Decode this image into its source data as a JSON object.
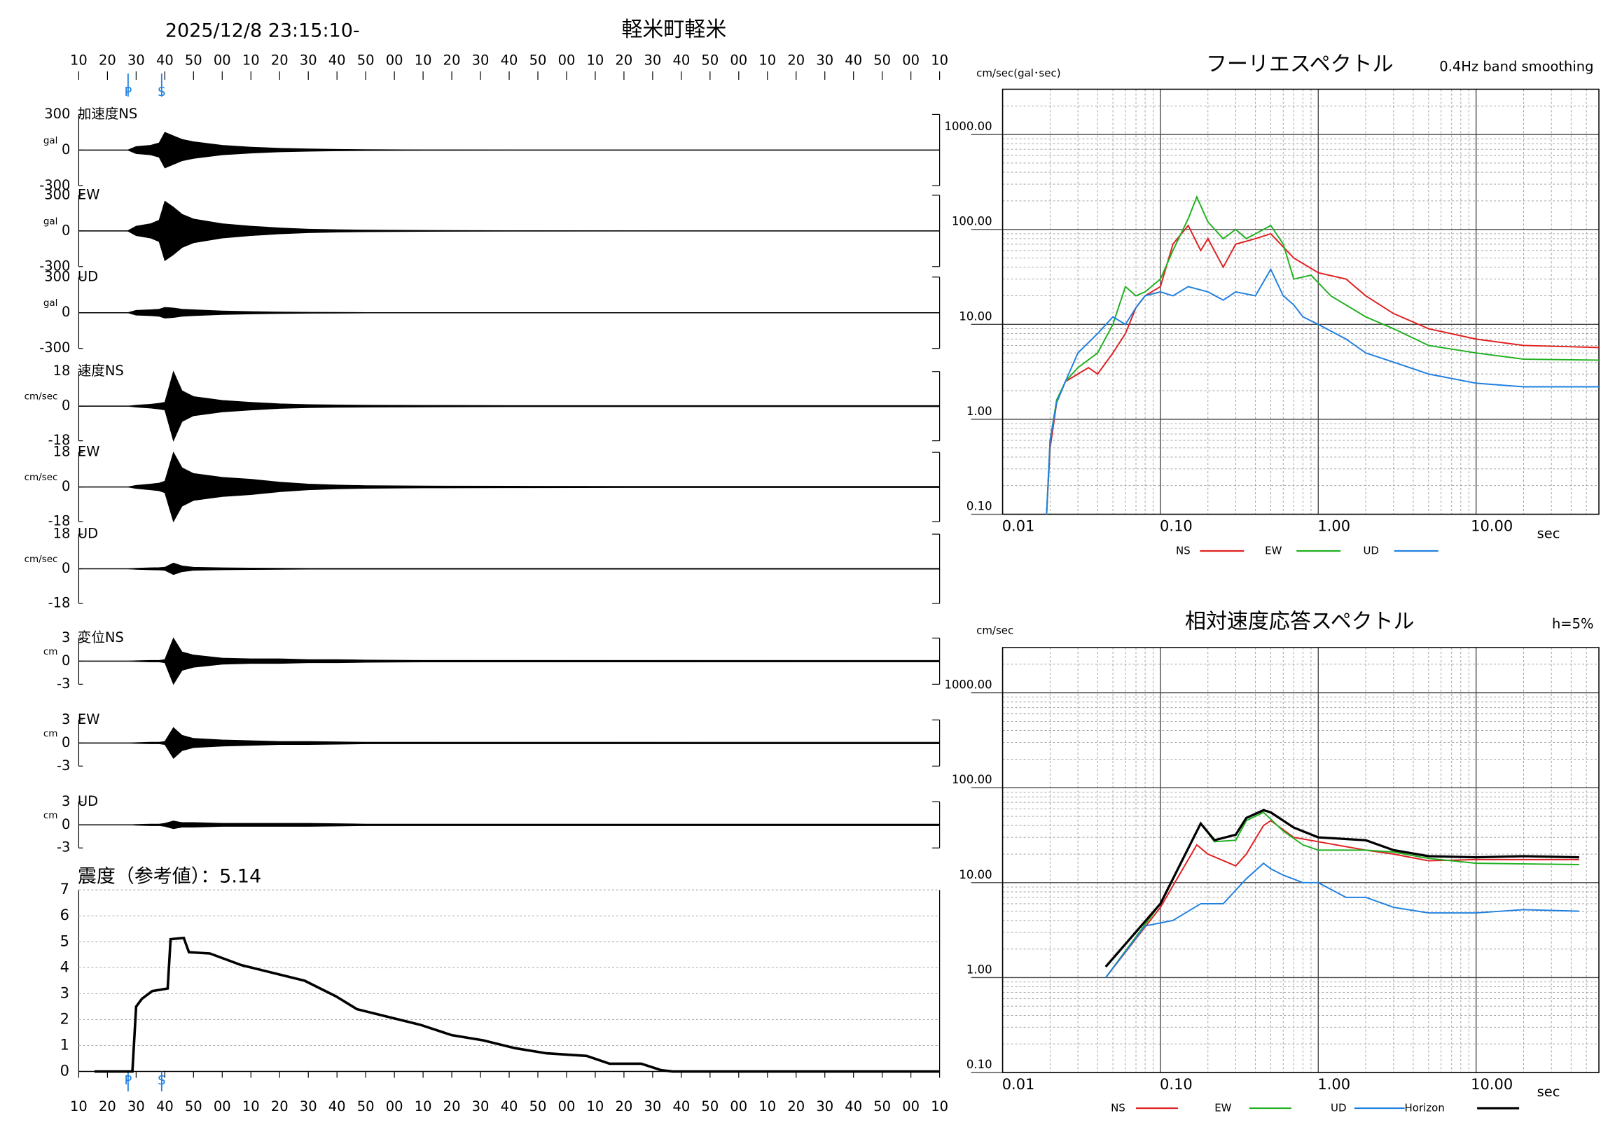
{
  "header": {
    "datetime": "2025/12/8 23:15:10-",
    "station": "軽米町軽米"
  },
  "chart_data": [
    {
      "type": "waveform",
      "xlim": [
        0,
        300
      ],
      "xticks": [
        {
          "value": 0,
          "label": "10"
        },
        {
          "value": 10,
          "label": "20"
        },
        {
          "value": 20,
          "label": "30"
        },
        {
          "value": 30,
          "label": "40"
        },
        {
          "value": 40,
          "label": "50"
        },
        {
          "value": 50,
          "label": "00"
        },
        {
          "value": 60,
          "label": "10"
        },
        {
          "value": 70,
          "label": "20"
        },
        {
          "value": 80,
          "label": "30"
        },
        {
          "value": 90,
          "label": "40"
        },
        {
          "value": 100,
          "label": "50"
        },
        {
          "value": 110,
          "label": "00"
        },
        {
          "value": 120,
          "label": "10"
        },
        {
          "value": 130,
          "label": "20"
        },
        {
          "value": 140,
          "label": "30"
        },
        {
          "value": 150,
          "label": "40"
        },
        {
          "value": 160,
          "label": "50"
        },
        {
          "value": 170,
          "label": "00"
        },
        {
          "value": 180,
          "label": "10"
        },
        {
          "value": 190,
          "label": "20"
        },
        {
          "value": 200,
          "label": "30"
        },
        {
          "value": 210,
          "label": "40"
        },
        {
          "value": 220,
          "label": "50"
        },
        {
          "value": 230,
          "label": "00"
        },
        {
          "value": 240,
          "label": "10"
        },
        {
          "value": 250,
          "label": "20"
        },
        {
          "value": 260,
          "label": "30"
        },
        {
          "value": 270,
          "label": "40"
        },
        {
          "value": 280,
          "label": "50"
        },
        {
          "value": 290,
          "label": "00"
        },
        {
          "value": 300,
          "label": "10"
        }
      ],
      "phases": [
        {
          "label": "P",
          "value": 17.2
        },
        {
          "label": "S",
          "value": 28.9
        }
      ],
      "x": [
        0,
        17,
        20,
        25,
        28,
        30,
        33,
        36,
        40,
        50,
        60,
        70,
        80,
        90,
        100,
        120,
        150,
        200,
        250,
        300
      ],
      "panels": [
        {
          "label": "加速度NS",
          "unit": "gal",
          "ylim": [
            -300,
            300
          ],
          "yticks": [
            300,
            0,
            -300
          ],
          "values": [
            0,
            0,
            30,
            40,
            60,
            150,
            120,
            90,
            70,
            40,
            25,
            15,
            10,
            6,
            4,
            2,
            1,
            1,
            1,
            1
          ]
        },
        {
          "label": "EW",
          "unit": "gal",
          "ylim": [
            -300,
            300
          ],
          "yticks": [
            300,
            0,
            -300
          ],
          "values": [
            0,
            0,
            40,
            60,
            90,
            250,
            200,
            140,
            100,
            60,
            40,
            25,
            15,
            10,
            7,
            4,
            2,
            1,
            1,
            1
          ]
        },
        {
          "label": "UD",
          "unit": "gal",
          "ylim": [
            -300,
            300
          ],
          "yticks": [
            300,
            0,
            -300
          ],
          "values": [
            0,
            0,
            20,
            25,
            30,
            45,
            40,
            30,
            25,
            15,
            10,
            6,
            4,
            3,
            2,
            1,
            1,
            1,
            1,
            1
          ]
        },
        {
          "label": "速度NS",
          "unit": "cm/sec",
          "ylim": [
            -18,
            18
          ],
          "yticks": [
            18,
            0,
            -18
          ],
          "values": [
            0,
            0,
            0.5,
            1,
            1.5,
            2,
            18,
            8,
            5,
            3,
            2,
            1.2,
            0.8,
            0.6,
            0.5,
            0.4,
            0.3,
            0.3,
            0.3,
            0.3
          ]
        },
        {
          "label": "EW",
          "unit": "cm/sec",
          "ylim": [
            -18,
            18
          ],
          "yticks": [
            18,
            0,
            -18
          ],
          "values": [
            0,
            0,
            0.8,
            1.5,
            2,
            3,
            18,
            10,
            7,
            5,
            4,
            2.5,
            1.5,
            1,
            0.7,
            0.5,
            0.4,
            0.3,
            0.3,
            0.3
          ]
        },
        {
          "label": "UD",
          "unit": "cm/sec",
          "ylim": [
            -18,
            18
          ],
          "yticks": [
            18,
            0,
            -18
          ],
          "values": [
            0,
            0,
            0.3,
            0.5,
            0.6,
            0.8,
            3,
            1.5,
            0.8,
            0.5,
            0.4,
            0.3,
            0.2,
            0.2,
            0.2,
            0.2,
            0.2,
            0.2,
            0.2,
            0.2
          ]
        },
        {
          "label": "変位NS",
          "unit": "cm",
          "ylim": [
            -3,
            3
          ],
          "yticks": [
            3,
            0,
            -3
          ],
          "values": [
            0,
            0,
            0.05,
            0.1,
            0.1,
            0.2,
            3,
            1.2,
            0.8,
            0.4,
            0.3,
            0.3,
            0.2,
            0.2,
            0.15,
            0.1,
            0.1,
            0.1,
            0.1,
            0.1
          ]
        },
        {
          "label": "EW",
          "unit": "cm",
          "ylim": [
            -3,
            3
          ],
          "yticks": [
            3,
            0,
            -3
          ],
          "values": [
            0,
            0,
            0.05,
            0.1,
            0.1,
            0.2,
            2,
            1,
            0.6,
            0.4,
            0.3,
            0.2,
            0.2,
            0.15,
            0.1,
            0.1,
            0.1,
            0.1,
            0.1,
            0.1
          ]
        },
        {
          "label": "UD",
          "unit": "cm",
          "ylim": [
            -3,
            3
          ],
          "yticks": [
            3,
            0,
            -3
          ],
          "values": [
            0,
            0,
            0.05,
            0.1,
            0.1,
            0.2,
            0.5,
            0.3,
            0.3,
            0.2,
            0.2,
            0.2,
            0.2,
            0.15,
            0.1,
            0.1,
            0.1,
            0.1,
            0.1,
            0.1
          ]
        }
      ]
    },
    {
      "type": "line",
      "title": "震度（参考値）：5.14",
      "ylim": [
        0,
        7
      ],
      "yticks": [
        0,
        1,
        2,
        3,
        4,
        5,
        6,
        7
      ],
      "color": "#000000",
      "x": [
        5.5,
        18.7,
        20,
        22,
        25.6,
        31,
        32,
        36.6,
        38.4,
        45.7,
        56.7,
        67.7,
        78.7,
        89.6,
        97,
        108,
        119,
        130,
        141,
        152,
        163,
        177,
        185,
        196,
        203,
        207,
        300
      ],
      "values": [
        0,
        0,
        2.5,
        2.8,
        3.1,
        3.2,
        5.1,
        5.15,
        4.6,
        4.55,
        4.1,
        3.8,
        3.5,
        2.9,
        2.4,
        2.1,
        1.8,
        1.4,
        1.2,
        0.9,
        0.7,
        0.6,
        0.3,
        0.3,
        0.05,
        0,
        0
      ]
    },
    {
      "type": "loglog",
      "title": "フーリエスペクトル",
      "subtitle": "0.4Hz band smoothing",
      "ylabel": "cm/sec(gal･sec)",
      "xlabel": "sec",
      "xlim": [
        0.01,
        60
      ],
      "ylim": [
        0.1,
        3000
      ],
      "grid": true,
      "xticks": [
        {
          "value": 0.01,
          "label": "0.01"
        },
        {
          "value": 0.1,
          "label": "0.10"
        },
        {
          "value": 1,
          "label": "1.00"
        },
        {
          "value": 10,
          "label": "10.00"
        }
      ],
      "yticks": [
        {
          "value": 0.1,
          "label": "0.10"
        },
        {
          "value": 1,
          "label": "1.00"
        },
        {
          "value": 10,
          "label": "10.00"
        },
        {
          "value": 100,
          "label": "100.00"
        },
        {
          "value": 1000,
          "label": "1000.00"
        }
      ],
      "series": [
        {
          "name": "NS",
          "color": "#e02020",
          "x": [
            0.019,
            0.02,
            0.022,
            0.025,
            0.03,
            0.035,
            0.04,
            0.05,
            0.06,
            0.07,
            0.08,
            0.1,
            0.12,
            0.15,
            0.18,
            0.2,
            0.25,
            0.3,
            0.4,
            0.5,
            0.7,
            1,
            1.5,
            2,
            3,
            5,
            10,
            20,
            60
          ],
          "values": [
            0.1,
            0.5,
            1.5,
            2.5,
            3,
            3.5,
            3,
            5,
            8,
            15,
            20,
            25,
            70,
            110,
            60,
            80,
            40,
            70,
            80,
            90,
            50,
            35,
            30,
            20,
            13,
            9,
            7,
            6,
            5.7
          ]
        },
        {
          "name": "EW",
          "color": "#20b020",
          "x": [
            0.019,
            0.02,
            0.022,
            0.025,
            0.03,
            0.04,
            0.05,
            0.06,
            0.07,
            0.08,
            0.1,
            0.12,
            0.15,
            0.17,
            0.2,
            0.25,
            0.3,
            0.35,
            0.4,
            0.5,
            0.6,
            0.7,
            0.9,
            1.2,
            2,
            3,
            5,
            10,
            20,
            60
          ],
          "values": [
            0.1,
            0.6,
            1.6,
            2.5,
            3.5,
            5,
            10,
            25,
            20,
            22,
            30,
            60,
            130,
            220,
            120,
            80,
            100,
            80,
            90,
            110,
            70,
            30,
            33,
            20,
            12,
            9,
            6,
            5,
            4.3,
            4.2
          ]
        },
        {
          "name": "UD",
          "color": "#2080e0",
          "x": [
            0.019,
            0.02,
            0.022,
            0.025,
            0.03,
            0.04,
            0.05,
            0.06,
            0.07,
            0.08,
            0.1,
            0.12,
            0.15,
            0.2,
            0.25,
            0.3,
            0.4,
            0.5,
            0.6,
            0.7,
            0.8,
            1,
            1.5,
            2,
            3,
            5,
            10,
            20,
            60
          ],
          "values": [
            0.1,
            0.6,
            1.5,
            2.5,
            5,
            8,
            12,
            10,
            15,
            20,
            22,
            20,
            25,
            22,
            18,
            22,
            20,
            38,
            20,
            16,
            12,
            10,
            7,
            5,
            4,
            3,
            2.4,
            2.2,
            2.2
          ]
        }
      ]
    },
    {
      "type": "loglog",
      "title": "相対速度応答スペクトル",
      "subtitle": "h=5%",
      "ylabel": "cm/sec",
      "xlabel": "sec",
      "xlim": [
        0.01,
        60
      ],
      "ylim": [
        0.1,
        3000
      ],
      "grid": true,
      "xticks": [
        {
          "value": 0.01,
          "label": "0.01"
        },
        {
          "value": 0.1,
          "label": "0.10"
        },
        {
          "value": 1,
          "label": "1.00"
        },
        {
          "value": 10,
          "label": "10.00"
        }
      ],
      "yticks": [
        {
          "value": 0.1,
          "label": "0.10"
        },
        {
          "value": 1,
          "label": "1.00"
        },
        {
          "value": 10,
          "label": "10.00"
        },
        {
          "value": 100,
          "label": "100.00"
        },
        {
          "value": 1000,
          "label": "1000.00"
        }
      ],
      "series": [
        {
          "name": "NS",
          "color": "#e02020",
          "x": [
            0.045,
            0.1,
            0.17,
            0.2,
            0.3,
            0.35,
            0.45,
            0.5,
            0.7,
            1,
            2,
            3,
            5,
            10,
            45
          ],
          "values": [
            1.0,
            5.5,
            25,
            20,
            15,
            20,
            40,
            45,
            30,
            27,
            22,
            20,
            17,
            17.5,
            17.5
          ]
        },
        {
          "name": "EW",
          "color": "#20b020",
          "x": [
            0.045,
            0.1,
            0.18,
            0.22,
            0.3,
            0.35,
            0.45,
            0.6,
            0.8,
            1,
            2,
            3,
            5,
            10,
            45
          ],
          "values": [
            1.0,
            6,
            42,
            27,
            28,
            45,
            55,
            35,
            25,
            22,
            22,
            21,
            18,
            16,
            15.5
          ]
        },
        {
          "name": "UD",
          "color": "#2080e0",
          "x": [
            0.045,
            0.08,
            0.12,
            0.18,
            0.25,
            0.35,
            0.45,
            0.5,
            0.6,
            0.8,
            1,
            1.5,
            2,
            3,
            5,
            10,
            20,
            45
          ],
          "values": [
            1.0,
            3.5,
            4,
            6,
            6,
            11,
            16,
            14,
            12,
            10,
            10,
            7,
            7,
            5.5,
            4.8,
            4.8,
            5.2,
            5
          ]
        },
        {
          "name": "Horizon",
          "color": "#000000",
          "x": [
            0.045,
            0.1,
            0.18,
            0.22,
            0.3,
            0.35,
            0.45,
            0.5,
            0.7,
            1,
            2,
            3,
            5,
            10,
            20,
            45
          ],
          "values": [
            1.3,
            6,
            42,
            28,
            32,
            48,
            58,
            55,
            38,
            30,
            28,
            22,
            19,
            18.5,
            19,
            18.5
          ]
        }
      ]
    }
  ]
}
